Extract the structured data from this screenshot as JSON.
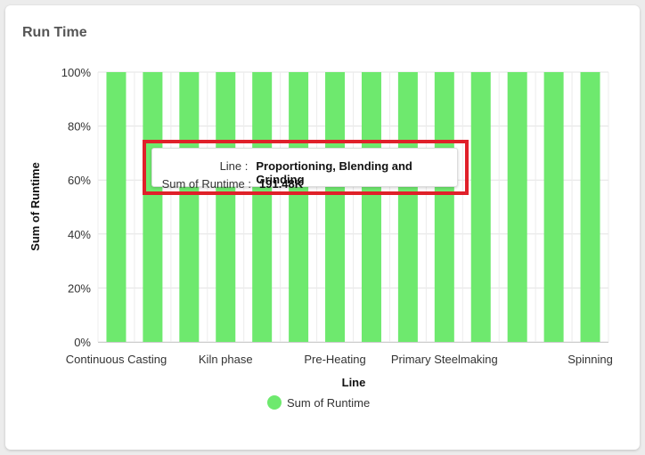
{
  "card": {
    "title": "Run Time"
  },
  "chart_data": {
    "type": "bar",
    "categories": [
      "Continuous Casting",
      "",
      "",
      "Kiln phase",
      "",
      "",
      "Pre-Heating",
      "",
      "",
      "Primary Steelmaking",
      "",
      "",
      "",
      "Spinning"
    ],
    "tick_labels": [
      "Continuous Casting",
      "Kiln phase",
      "Pre-Heating",
      "Primary Steelmaking",
      "Spinning"
    ],
    "series": [
      {
        "name": "Sum of Runtime",
        "values": [
          100,
          100,
          100,
          100,
          100,
          100,
          100,
          100,
          100,
          100,
          100,
          100,
          100,
          100
        ]
      }
    ],
    "yticks": [
      "0%",
      "20%",
      "40%",
      "60%",
      "80%",
      "100%"
    ],
    "ylim": [
      0,
      100
    ],
    "xlabel": "Line",
    "ylabel": "Sum of Runtime",
    "legend_position": "bottom",
    "grid": true,
    "bar_color": "#6ee96e"
  },
  "tooltip": {
    "line_label": "Line :",
    "line_value": "Proportioning, Blending and Grinding",
    "sum_label": "Sum of Runtime :",
    "sum_value": "191.48K"
  },
  "legend": {
    "label": "Sum of Runtime"
  }
}
